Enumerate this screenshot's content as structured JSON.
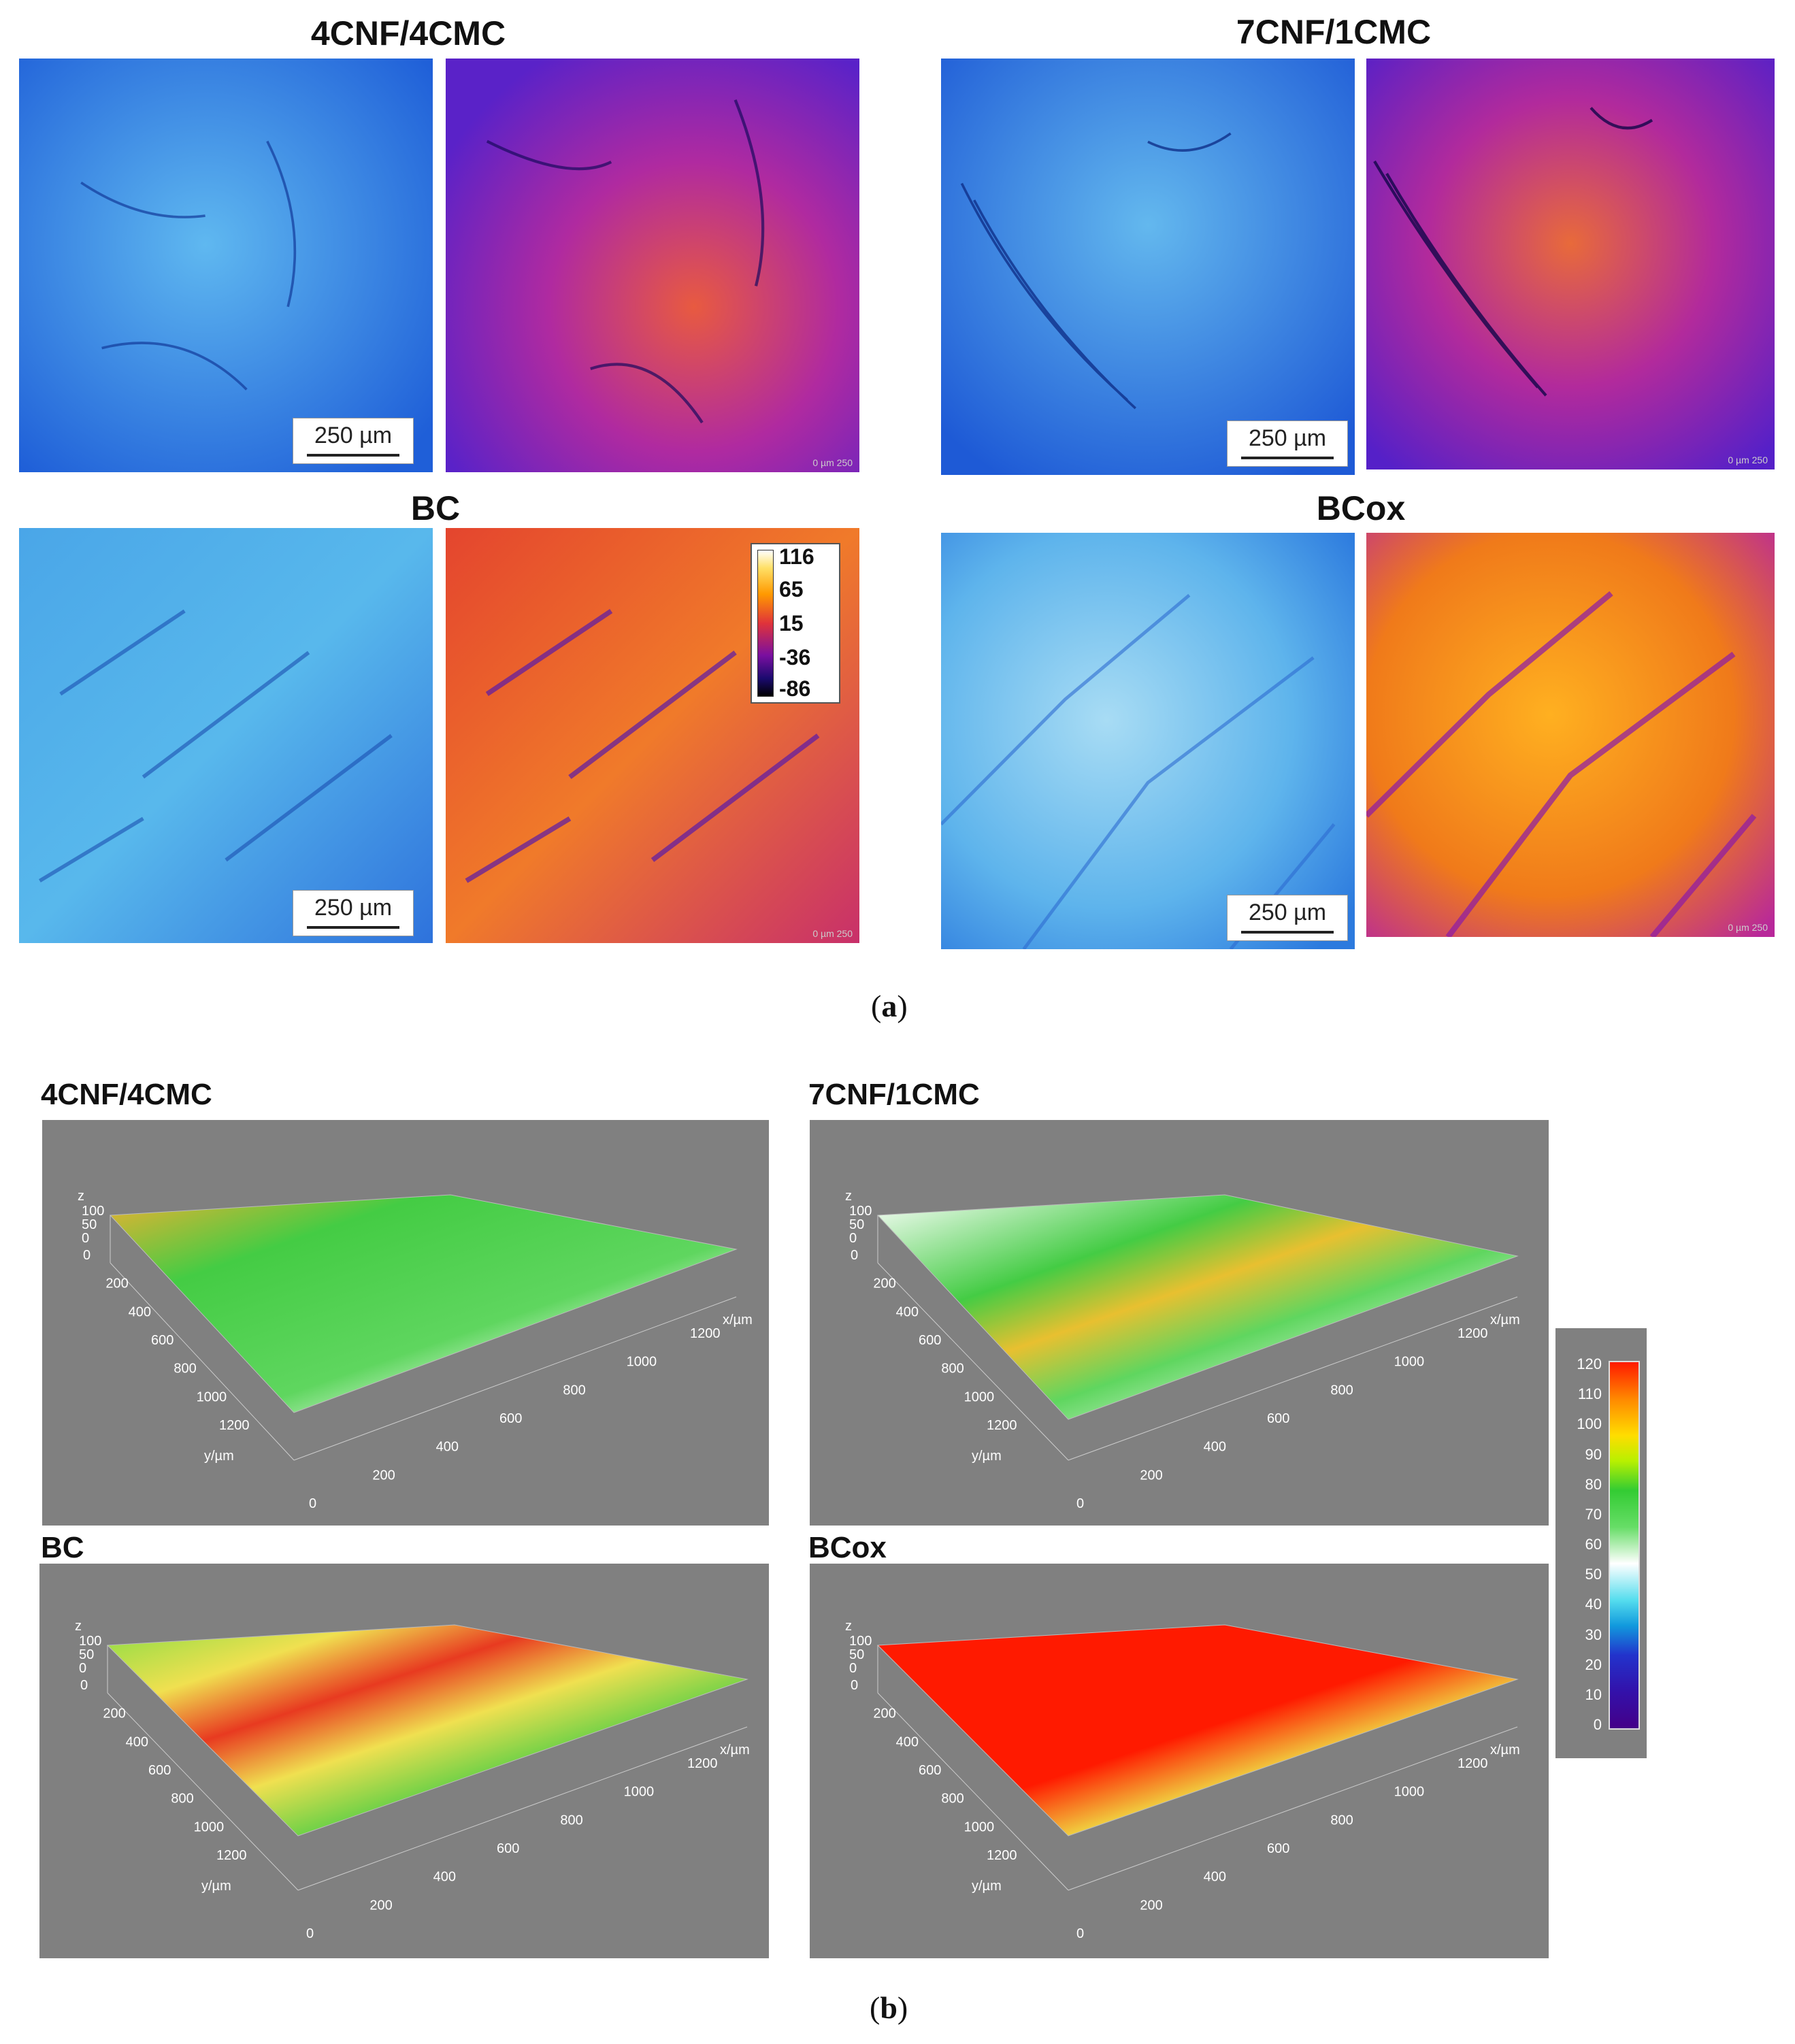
{
  "panel_a": {
    "caption": "a",
    "groups": [
      {
        "title": "4CNF/4CMC",
        "scale_label": "250 µm",
        "ruler_note": "0     µm 250"
      },
      {
        "title": "7CNF/1CMC",
        "scale_label": "250 µm",
        "ruler_note": "0     µm 250"
      },
      {
        "title": "BC",
        "scale_label": "250 µm",
        "ruler_note": "0     µm 250"
      },
      {
        "title": "BCox",
        "scale_label": "250 µm",
        "ruler_note": "0     µm 250"
      }
    ],
    "colorbar_ticks": [
      "116",
      "65",
      "15",
      "-36",
      "-86"
    ]
  },
  "panel_b": {
    "caption": "b",
    "plots": [
      {
        "title": "4CNF/4CMC"
      },
      {
        "title": "7CNF/1CMC"
      },
      {
        "title": "BC"
      },
      {
        "title": "BCox"
      }
    ],
    "axes": {
      "z_label": "z",
      "z_ticks": [
        "100",
        "50",
        "0"
      ],
      "y_label": "y/µm",
      "y_ticks": [
        "0",
        "200",
        "400",
        "600",
        "800",
        "1000",
        "1200"
      ],
      "x_label": "x/µm",
      "x_ticks": [
        "0",
        "200",
        "400",
        "600",
        "800",
        "1000",
        "1200"
      ]
    },
    "colorbar_ticks": [
      "120",
      "110",
      "100",
      "90",
      "80",
      "70",
      "60",
      "50",
      "40",
      "30",
      "20",
      "10",
      "0"
    ]
  },
  "colors": {
    "plot_bg": "#808080",
    "blue_map": "#2f7fe0",
    "heat_map": "#a02aa8"
  }
}
